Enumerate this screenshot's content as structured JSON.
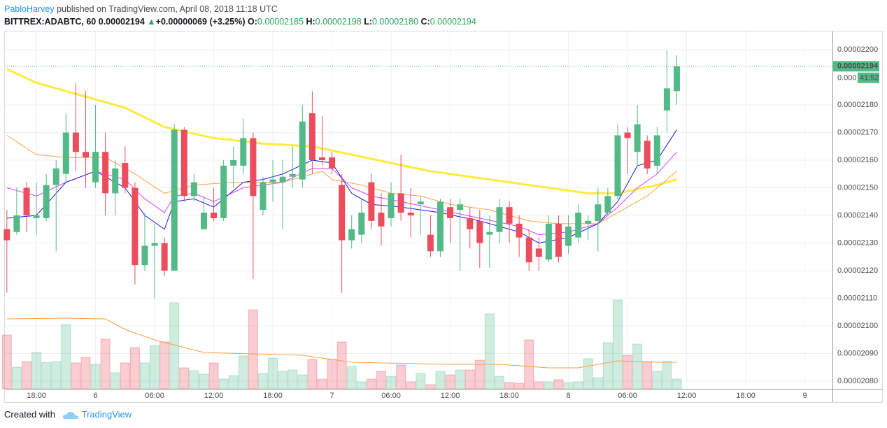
{
  "header": {
    "author": "PabloHarvey",
    "published": "published on TradingView.com, April 08, 2018 11:18 UTC",
    "symbol": "BITTREX:ADABTC, 60",
    "last": "0.00002194",
    "arrow": "▲",
    "change": "+0.00000069 (+3.25%)",
    "o_label": "O:",
    "o": "0.00002185",
    "h_label": "H:",
    "h": "0.00002198",
    "l_label": "L:",
    "l": "0.00002180",
    "c_label": "C:",
    "c": "0.00002194"
  },
  "footer": {
    "created": "Created with",
    "brand": "TradingView"
  },
  "chart_data": {
    "type": "candlestick",
    "open": [
      2.135e-05,
      2.134e-05,
      2.15e-05,
      2.139e-05,
      2.139e-05,
      2.151e-05,
      2.155e-05,
      2.17e-05,
      2.163e-05,
      2.152e-05,
      2.163e-05,
      2.148e-05,
      2.159e-05,
      2.15e-05,
      2.122e-05,
      2.129e-05,
      2.13e-05,
      2.12e-05,
      2.171e-05,
      2.147e-05,
      2.135e-05,
      2.141e-05,
      2.139e-05,
      2.158e-05,
      2.158e-05,
      2.168e-05,
      2.142e-05,
      2.152e-05,
      2.152e-05,
      2.154e-05,
      2.153e-05,
      2.177e-05,
      2.161e-05,
      2.161e-05,
      2.151e-05,
      2.131e-05,
      2.133e-05,
      2.152e-05,
      2.141e-05,
      2.139e-05,
      2.148e-05,
      2.141e-05,
      2.144e-05,
      2.133e-05,
      2.127e-05,
      2.143e-05,
      2.142e-05,
      2.139e-05,
      2.138e-05,
      2.133e-05,
      2.134e-05,
      2.143e-05,
      2.137e-05,
      2.132e-05,
      2.128e-05,
      2.124e-05,
      2.137e-05,
      2.129e-05,
      2.132e-05,
      2.137e-05,
      2.138e-05,
      2.141e-05,
      2.147e-05,
      2.17e-05,
      2.163e-05,
      2.167e-05,
      2.158e-05,
      2.178e-05,
      2.185e-05
    ],
    "high": [
      2.142e-05,
      2.15e-05,
      2.152e-05,
      2.152e-05,
      2.155e-05,
      2.16e-05,
      2.177e-05,
      2.188e-05,
      2.185e-05,
      2.18e-05,
      2.17e-05,
      2.16e-05,
      2.165e-05,
      2.152e-05,
      2.141e-05,
      2.137e-05,
      2.132e-05,
      2.173e-05,
      2.172e-05,
      2.155e-05,
      2.147e-05,
      2.15e-05,
      2.16e-05,
      2.165e-05,
      2.175e-05,
      2.17e-05,
      2.154e-05,
      2.16e-05,
      2.16e-05,
      2.165e-05,
      2.18e-05,
      2.185e-05,
      2.176e-05,
      2.163e-05,
      2.155e-05,
      2.14e-05,
      2.146e-05,
      2.155e-05,
      2.148e-05,
      2.152e-05,
      2.162e-05,
      2.15e-05,
      2.147e-05,
      2.14e-05,
      2.146e-05,
      2.146e-05,
      2.146e-05,
      2.143e-05,
      2.142e-05,
      2.14e-05,
      2.146e-05,
      2.145e-05,
      2.14e-05,
      2.135e-05,
      2.132e-05,
      2.14e-05,
      2.14e-05,
      2.14e-05,
      2.144e-05,
      2.14e-05,
      2.15e-05,
      2.15e-05,
      2.173e-05,
      2.172e-05,
      2.18e-05,
      2.169e-05,
      2.172e-05,
      2.2e-05,
      2.198e-05
    ],
    "low": [
      2.112e-05,
      2.133e-05,
      2.134e-05,
      2.133e-05,
      2.138e-05,
      2.127e-05,
      2.152e-05,
      2.156e-05,
      2.15e-05,
      2.15e-05,
      2.14e-05,
      2.14e-05,
      2.148e-05,
      2.115e-05,
      2.12e-05,
      2.11e-05,
      2.118e-05,
      2.12e-05,
      2.145e-05,
      2.145e-05,
      2.135e-05,
      2.138e-05,
      2.138e-05,
      2.15e-05,
      2.155e-05,
      2.117e-05,
      2.14e-05,
      2.145e-05,
      2.135e-05,
      2.15e-05,
      2.15e-05,
      2.155e-05,
      2.158e-05,
      2.155e-05,
      2.112e-05,
      2.128e-05,
      2.13e-05,
      2.135e-05,
      2.129e-05,
      2.136e-05,
      2.138e-05,
      2.132e-05,
      2.133e-05,
      2.125e-05,
      2.125e-05,
      2.13e-05,
      2.12e-05,
      2.128e-05,
      2.121e-05,
      2.121e-05,
      2.13e-05,
      2.13e-05,
      2.125e-05,
      2.12e-05,
      2.12e-05,
      2.123e-05,
      2.123e-05,
      2.126e-05,
      2.13e-05,
      2.131e-05,
      2.127e-05,
      2.14e-05,
      2.146e-05,
      2.155e-05,
      2.158e-05,
      2.155e-05,
      2.155e-05,
      2.17e-05,
      2.18e-05
    ],
    "close": [
      2.131e-05,
      2.14e-05,
      2.14e-05,
      2.14e-05,
      2.151e-05,
      2.157e-05,
      2.17e-05,
      2.163e-05,
      2.161e-05,
      2.163e-05,
      2.148e-05,
      2.157e-05,
      2.15e-05,
      2.122e-05,
      2.129e-05,
      2.13e-05,
      2.12e-05,
      2.171e-05,
      2.147e-05,
      2.152e-05,
      2.141e-05,
      2.139e-05,
      2.158e-05,
      2.16e-05,
      2.168e-05,
      2.147e-05,
      2.152e-05,
      2.153e-05,
      2.154e-05,
      2.155e-05,
      2.174e-05,
      2.16e-05,
      2.16e-05,
      2.157e-05,
      2.131e-05,
      2.135e-05,
      2.141e-05,
      2.138e-05,
      2.136e-05,
      2.148e-05,
      2.141e-05,
      2.14e-05,
      2.145e-05,
      2.127e-05,
      2.145e-05,
      2.139e-05,
      2.144e-05,
      2.135e-05,
      2.13e-05,
      2.134e-05,
      2.143e-05,
      2.137e-05,
      2.132e-05,
      2.123e-05,
      2.125e-05,
      2.137e-05,
      2.125e-05,
      2.136e-05,
      2.141e-05,
      2.138e-05,
      2.144e-05,
      2.147e-05,
      2.169e-05,
      2.168e-05,
      2.173e-05,
      2.157e-05,
      2.169e-05,
      2.186e-05,
      2.194e-05
    ],
    "volume": [
      77,
      31,
      39,
      52,
      38,
      39,
      92,
      37,
      45,
      35,
      71,
      23,
      37,
      59,
      37,
      62,
      67,
      123,
      30,
      26,
      21,
      37,
      14,
      19,
      47,
      113,
      22,
      44,
      25,
      27,
      20,
      42,
      14,
      42,
      67,
      32,
      10,
      14,
      25,
      18,
      34,
      10,
      22,
      6,
      25,
      20,
      27,
      27,
      41,
      107,
      18,
      9,
      8,
      70,
      10,
      10,
      13,
      9,
      10,
      43,
      16,
      66,
      127,
      48,
      64,
      39,
      25,
      39,
      14
    ],
    "lines": [
      {
        "color": "#ffeb3b",
        "width": 3,
        "x": [
          0,
          3,
          6,
          12,
          16,
          21,
          26,
          31,
          35,
          39,
          43,
          49,
          55,
          59,
          62,
          66,
          68
        ],
        "values": [
          2.193e-05,
          2.188e-05,
          2.185e-05,
          2.179e-05,
          2.172e-05,
          2.168e-05,
          2.166e-05,
          2.165e-05,
          2.162e-05,
          2.159e-05,
          2.156e-05,
          2.153e-05,
          2.15e-05,
          2.148e-05,
          2.148e-05,
          2.151e-05,
          2.153e-05
        ]
      },
      {
        "color": "#ff9f43",
        "width": 1,
        "x": [
          0,
          3,
          6,
          10,
          13,
          16,
          19,
          23,
          28,
          32,
          33,
          36,
          39,
          42,
          45,
          49,
          53,
          56,
          60,
          62,
          65,
          68
        ],
        "values": [
          2.169e-05,
          2.162e-05,
          2.161e-05,
          2.161e-05,
          2.155e-05,
          2.148e-05,
          2.151e-05,
          2.152e-05,
          2.152e-05,
          2.156e-05,
          2.153e-05,
          2.151e-05,
          2.148e-05,
          2.147e-05,
          2.144e-05,
          2.142e-05,
          2.138e-05,
          2.137e-05,
          2.137e-05,
          2.141e-05,
          2.147e-05,
          2.156e-05
        ]
      },
      {
        "color": "#e040fb",
        "width": 1,
        "x": [
          0,
          3,
          6,
          9,
          12,
          14,
          16,
          17,
          19,
          21,
          24,
          26,
          28,
          31,
          33,
          35,
          37,
          40,
          44,
          48,
          52,
          54,
          57,
          60,
          62,
          64,
          66,
          68
        ],
        "values": [
          2.15e-05,
          2.147e-05,
          2.152e-05,
          2.156e-05,
          2.153e-05,
          2.146e-05,
          2.141e-05,
          2.147e-05,
          2.148e-05,
          2.145e-05,
          2.15e-05,
          2.151e-05,
          2.152e-05,
          2.157e-05,
          2.157e-05,
          2.15e-05,
          2.147e-05,
          2.145e-05,
          2.142e-05,
          2.139e-05,
          2.136e-05,
          2.133e-05,
          2.134e-05,
          2.137e-05,
          2.143e-05,
          2.15e-05,
          2.155e-05,
          2.163e-05
        ]
      },
      {
        "color": "#1a1ad8",
        "width": 1,
        "x": [
          0,
          3,
          6,
          9,
          12,
          14,
          16,
          17,
          19,
          21,
          24,
          26,
          28,
          31,
          33,
          35,
          37,
          40,
          44,
          48,
          52,
          54,
          57,
          60,
          62,
          64,
          66,
          68
        ],
        "values": [
          2.139e-05,
          2.14e-05,
          2.152e-05,
          2.156e-05,
          2.15e-05,
          2.14e-05,
          2.135e-05,
          2.145e-05,
          2.146e-05,
          2.143e-05,
          2.152e-05,
          2.153e-05,
          2.155e-05,
          2.16e-05,
          2.159e-05,
          2.148e-05,
          2.144e-05,
          2.143e-05,
          2.141e-05,
          2.138e-05,
          2.134e-05,
          2.13e-05,
          2.132e-05,
          2.137e-05,
          2.145e-05,
          2.158e-05,
          2.16e-05,
          2.171e-05
        ]
      }
    ],
    "volume_line": {
      "color": "#ff9f43",
      "x": [
        0,
        6,
        10,
        12,
        15,
        20,
        30,
        35,
        45,
        50,
        55,
        58,
        62,
        66,
        68
      ],
      "values": [
        100,
        101,
        100,
        85,
        70,
        52,
        48,
        38,
        35,
        35,
        30,
        30,
        40,
        38,
        38
      ]
    },
    "up_color": "#53b987",
    "down_color": "#eb4d5c",
    "last_price": {
      "value": 2.194e-05,
      "label": "0.00002194"
    },
    "countdown": "41:52",
    "covered_tick": "0.000",
    "xlim": [
      -0.2,
      83.8
    ],
    "xticks": [
      {
        "value": 3,
        "label": "18:00"
      },
      {
        "value": 9,
        "label": "6"
      },
      {
        "value": 15,
        "label": "06:00"
      },
      {
        "value": 21,
        "label": "12:00"
      },
      {
        "value": 27,
        "label": "18:00"
      },
      {
        "value": 33,
        "label": "7"
      },
      {
        "value": 39,
        "label": "06:00"
      },
      {
        "value": 45,
        "label": "12:00"
      },
      {
        "value": 51,
        "label": "18:00"
      },
      {
        "value": 57,
        "label": "8"
      },
      {
        "value": 63,
        "label": "06:00"
      },
      {
        "value": 69,
        "label": "12:00"
      },
      {
        "value": 75,
        "label": "18:00"
      },
      {
        "value": 81,
        "label": "9"
      }
    ],
    "ylim": [
      2.0772e-05,
      2.2066e-05
    ],
    "yticks": [
      {
        "value": 2.08e-05,
        "label": "0.00002080"
      },
      {
        "value": 2.09e-05,
        "label": "0.00002090"
      },
      {
        "value": 2.1e-05,
        "label": "0.00002100"
      },
      {
        "value": 2.11e-05,
        "label": "0.00002110"
      },
      {
        "value": 2.12e-05,
        "label": "0.00002120"
      },
      {
        "value": 2.13e-05,
        "label": "0.00002130"
      },
      {
        "value": 2.14e-05,
        "label": "0.00002140"
      },
      {
        "value": 2.15e-05,
        "label": "0.00002150"
      },
      {
        "value": 2.16e-05,
        "label": "0.00002160"
      },
      {
        "value": 2.17e-05,
        "label": "0.00002170"
      },
      {
        "value": 2.18e-05,
        "label": "0.00002180"
      },
      {
        "value": 2.2e-05,
        "label": "0.00002200"
      }
    ],
    "grid": true
  }
}
